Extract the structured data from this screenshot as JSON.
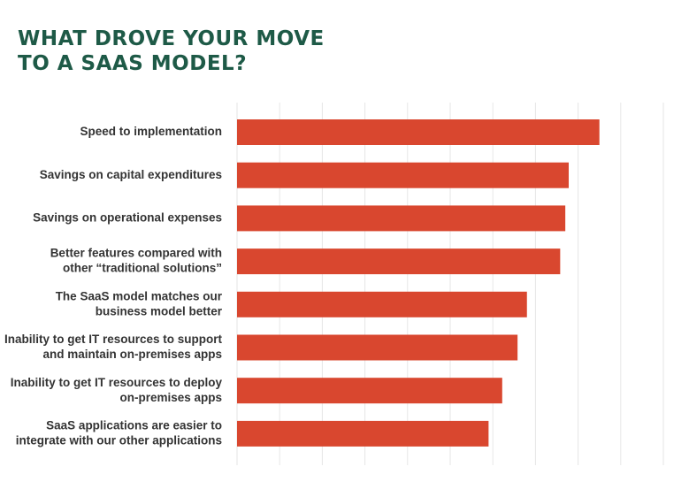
{
  "chart_data": {
    "type": "bar",
    "orientation": "horizontal",
    "title_lines": [
      "WHAT DROVE YOUR MOVE",
      "TO A SAAS MODEL?"
    ],
    "categories": [
      [
        "Speed to implementation"
      ],
      [
        "Savings on capital expenditures"
      ],
      [
        "Savings on operational expenses"
      ],
      [
        "Better features compared with",
        "other “traditional  solutions”"
      ],
      [
        "The SaaS model matches our",
        "business model better"
      ],
      [
        "Inability to get IT resources to support",
        "and maintain on-premises apps"
      ],
      [
        "Inability to get IT resources to deploy",
        "on-premises apps"
      ],
      [
        "SaaS applications are easier to",
        "integrate with our other applications"
      ]
    ],
    "values": [
      42.5,
      38.9,
      38.5,
      37.9,
      34.0,
      32.9,
      31.1,
      29.5
    ],
    "xlim": [
      0,
      50
    ],
    "grid": true,
    "axis_labels_shown": false,
    "bar_color": "#d9472f",
    "title_color": "#1e5a47",
    "label_color": "#333333",
    "grid_color": "#e6e6e6"
  }
}
